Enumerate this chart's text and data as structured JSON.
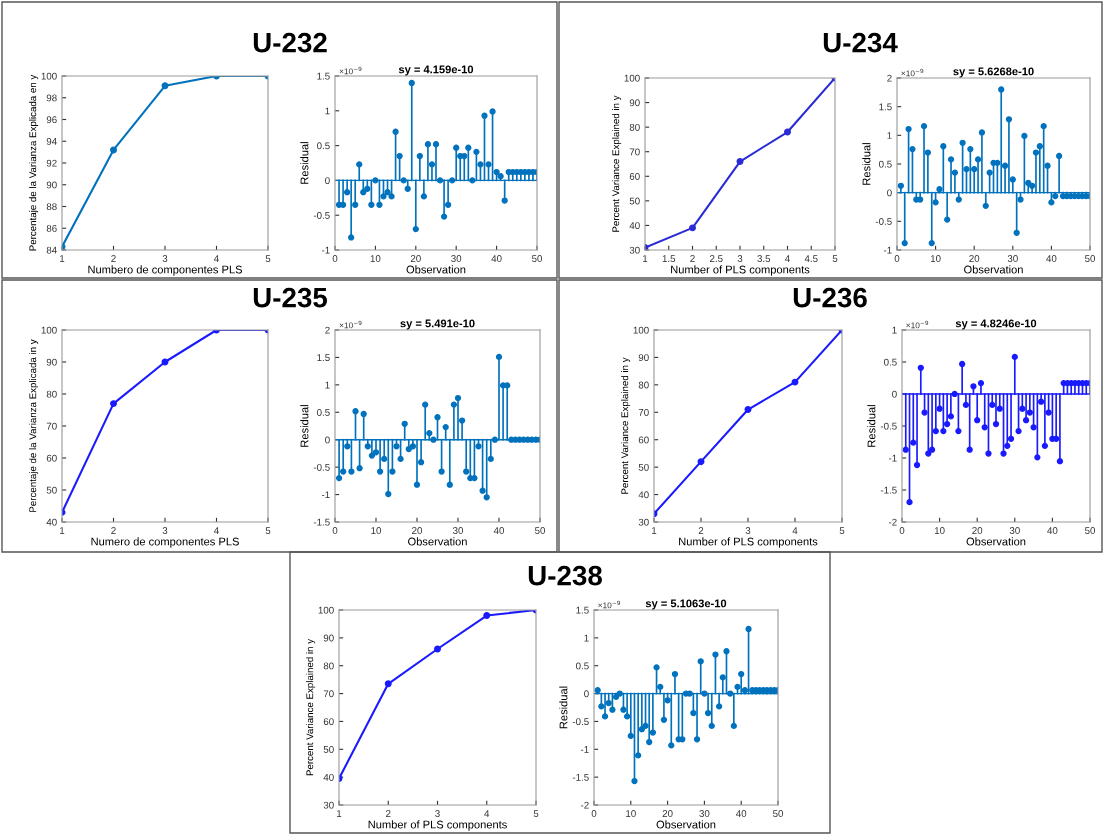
{
  "chart_data": [
    {
      "type": "line",
      "title": "U-232",
      "xlabel": "Numbero de componentes PLS",
      "ylabel": "Percentaje de la Varianza Explicada en y",
      "x": [
        1,
        2,
        3,
        4,
        5
      ],
      "series": [
        {
          "color": "#0072bd",
          "values": [
            84.3,
            93.2,
            99.1,
            100,
            100
          ]
        }
      ],
      "xlim": [
        1,
        5
      ],
      "xticks": [
        1,
        2,
        3,
        4,
        5
      ],
      "ylim": [
        84,
        100
      ],
      "yticks": [
        84,
        86,
        88,
        90,
        92,
        94,
        96,
        98,
        100
      ],
      "marker": "circle",
      "line_style": "solid",
      "grid": false,
      "legend": false
    },
    {
      "type": "lollipop",
      "title": "sy = 4.159e-10",
      "xlabel": "Observation",
      "ylabel": "Residual",
      "annotations": [
        "×10$^{−9}$"
      ],
      "x": [
        1,
        2,
        3,
        4,
        5,
        6,
        7,
        8,
        9,
        10,
        11,
        12,
        13,
        14,
        15,
        16,
        17,
        18,
        19,
        20,
        21,
        22,
        23,
        24,
        25,
        26,
        27,
        28,
        29,
        30,
        31,
        32,
        33,
        34,
        35,
        36,
        37,
        38,
        39,
        40,
        41,
        42,
        43,
        44,
        45,
        46,
        47,
        48,
        49,
        50
      ],
      "series": [
        {
          "color": "#0072bd",
          "values": [
            -0.35,
            -0.35,
            -0.17,
            -0.82,
            -0.35,
            0.23,
            -0.17,
            -0.12,
            -0.35,
            0.0,
            -0.35,
            -0.23,
            -0.17,
            -0.23,
            0.7,
            0.35,
            0.0,
            -0.12,
            1.4,
            -0.7,
            0.35,
            -0.23,
            0.52,
            0.23,
            0.52,
            0.0,
            -0.52,
            -0.35,
            0.0,
            0.47,
            0.35,
            0.35,
            0.47,
            0.0,
            0.41,
            0.23,
            0.93,
            0.23,
            0.99,
            0.12,
            0.06,
            -0.29,
            0.12,
            0.12,
            0.12,
            0.12,
            0.12,
            0.12,
            0.12,
            0.12
          ]
        }
      ],
      "xlim": [
        0,
        50
      ],
      "xticks": [
        0,
        10,
        20,
        30,
        40,
        50
      ],
      "ylim": [
        -1,
        1.5
      ],
      "yticks": [
        -1,
        -0.5,
        0,
        0.5,
        1,
        1.5
      ],
      "ref_lines": [
        {
          "axis": "y",
          "value": 0,
          "color": "#0072bd"
        }
      ],
      "marker": "circle",
      "grid": false,
      "legend": false
    },
    {
      "type": "line",
      "title": "U-234",
      "xlabel": "Number of PLS components",
      "ylabel": "Percent Variance Explained in y",
      "x": [
        1,
        2,
        3,
        4,
        5
      ],
      "series": [
        {
          "color": "#2b2bd6",
          "values": [
            31,
            39,
            66,
            78,
            100
          ]
        }
      ],
      "xlim": [
        1,
        5
      ],
      "xticks": [
        1,
        1.5,
        2,
        2.5,
        3,
        3.5,
        4,
        4.5,
        5
      ],
      "ylim": [
        30,
        100
      ],
      "yticks": [
        30,
        40,
        50,
        60,
        70,
        80,
        90,
        100
      ],
      "marker": "circle",
      "line_style": "solid",
      "grid": false,
      "legend": false
    },
    {
      "type": "lollipop",
      "title": "sy = 5.6268e-10",
      "xlabel": "Observation",
      "ylabel": "Residual",
      "annotations": [
        "×10$^{−9}$"
      ],
      "x": [
        1,
        2,
        3,
        4,
        5,
        6,
        7,
        8,
        9,
        10,
        11,
        12,
        13,
        14,
        15,
        16,
        17,
        18,
        19,
        20,
        21,
        22,
        23,
        24,
        25,
        26,
        27,
        28,
        29,
        30,
        31,
        32,
        33,
        34,
        35,
        36,
        37,
        38,
        39,
        40,
        41,
        42,
        43,
        44,
        45,
        46,
        47,
        48,
        49,
        50
      ],
      "series": [
        {
          "color": "#0072bd",
          "values": [
            0.12,
            -0.88,
            1.11,
            0.76,
            -0.12,
            -0.12,
            1.16,
            0.7,
            -0.88,
            -0.17,
            0.06,
            0.81,
            -0.47,
            0.58,
            0.35,
            -0.12,
            0.87,
            0.41,
            0.76,
            0.41,
            0.58,
            1.05,
            -0.23,
            0.35,
            0.52,
            0.52,
            1.8,
            0.47,
            1.28,
            0.23,
            -0.7,
            -0.12,
            0.99,
            0.17,
            0.12,
            0.7,
            0.81,
            1.16,
            0.47,
            -0.17,
            -0.06,
            0.64,
            -0.06,
            -0.06,
            -0.06,
            -0.06,
            -0.06,
            -0.06,
            -0.06,
            -0.06
          ]
        }
      ],
      "xlim": [
        0,
        50
      ],
      "xticks": [
        0,
        10,
        20,
        30,
        40,
        50
      ],
      "ylim": [
        -1,
        2
      ],
      "yticks": [
        -1,
        -0.5,
        0,
        0.5,
        1,
        1.5,
        2
      ],
      "ref_lines": [
        {
          "axis": "y",
          "value": 0,
          "color": "#0072bd"
        }
      ],
      "marker": "circle",
      "grid": false,
      "legend": false
    },
    {
      "type": "line",
      "title": "U-235",
      "xlabel": "Numero de componentes PLS",
      "ylabel": "Percentaje de la Varianza Explicada in y",
      "x": [
        1,
        2,
        3,
        4,
        5
      ],
      "series": [
        {
          "color": "#1a1aff",
          "values": [
            43,
            77,
            90,
            100,
            100
          ]
        }
      ],
      "xlim": [
        1,
        5
      ],
      "xticks": [
        1,
        2,
        3,
        4,
        5
      ],
      "ylim": [
        40,
        100
      ],
      "yticks": [
        40,
        50,
        60,
        70,
        80,
        90,
        100
      ],
      "marker": "circle",
      "line_style": "solid",
      "grid": false,
      "legend": false
    },
    {
      "type": "lollipop",
      "title": "sy = 5.491e-10",
      "xlabel": "Observation",
      "ylabel": "Residual",
      "annotations": [
        "×10$^{−9}$"
      ],
      "x": [
        1,
        2,
        3,
        4,
        5,
        6,
        7,
        8,
        9,
        10,
        11,
        12,
        13,
        14,
        15,
        16,
        17,
        18,
        19,
        20,
        21,
        22,
        23,
        24,
        25,
        26,
        27,
        28,
        29,
        30,
        31,
        32,
        33,
        34,
        35,
        36,
        37,
        38,
        39,
        40,
        41,
        42,
        43,
        44,
        45,
        46,
        47,
        48,
        49,
        50
      ],
      "series": [
        {
          "color": "#0072bd",
          "values": [
            -0.7,
            -0.58,
            -0.12,
            -0.58,
            0.52,
            -0.52,
            0.47,
            -0.12,
            -0.29,
            -0.23,
            -0.58,
            -0.35,
            -0.99,
            -0.58,
            -0.12,
            -0.35,
            0.29,
            -0.17,
            -0.12,
            -0.82,
            -0.41,
            0.64,
            0.12,
            0.0,
            0.41,
            -0.58,
            0.23,
            -0.82,
            0.64,
            0.76,
            0.35,
            -0.58,
            -0.7,
            -0.7,
            -0.12,
            -0.93,
            -1.05,
            -0.35,
            0.0,
            1.51,
            0.99,
            0.99,
            0.0,
            0.0,
            0.0,
            0.0,
            0.0,
            0.0,
            0.0,
            0.0
          ]
        }
      ],
      "xlim": [
        0,
        50
      ],
      "xticks": [
        0,
        10,
        20,
        30,
        40,
        50
      ],
      "ylim": [
        -1.5,
        2
      ],
      "yticks": [
        -1.5,
        -1,
        -0.5,
        0,
        0.5,
        1,
        1.5,
        2
      ],
      "ref_lines": [
        {
          "axis": "y",
          "value": 0,
          "color": "#0072bd"
        }
      ],
      "marker": "circle",
      "grid": false,
      "legend": false
    },
    {
      "type": "line",
      "title": "U-236",
      "xlabel": "Number of PLS components",
      "ylabel": "Percent Variance Explained in y",
      "x": [
        1,
        2,
        3,
        4,
        5
      ],
      "series": [
        {
          "color": "#1a1aff",
          "values": [
            33,
            52,
            71,
            81,
            100
          ]
        }
      ],
      "xlim": [
        1,
        5
      ],
      "xticks": [
        1,
        2,
        3,
        4,
        5
      ],
      "ylim": [
        30,
        100
      ],
      "yticks": [
        30,
        40,
        50,
        60,
        70,
        80,
        90,
        100
      ],
      "marker": "circle",
      "line_style": "solid",
      "grid": false,
      "legend": false
    },
    {
      "type": "lollipop",
      "title": "sy = 4.8246e-10",
      "xlabel": "Observation",
      "ylabel": "Residual",
      "annotations": [
        "×10$^{−9}$"
      ],
      "x": [
        1,
        2,
        3,
        4,
        5,
        6,
        7,
        8,
        9,
        10,
        11,
        12,
        13,
        14,
        15,
        16,
        17,
        18,
        19,
        20,
        21,
        22,
        23,
        24,
        25,
        26,
        27,
        28,
        29,
        30,
        31,
        32,
        33,
        34,
        35,
        36,
        37,
        38,
        39,
        40,
        41,
        42,
        43,
        44,
        45,
        46,
        47,
        48,
        49,
        50
      ],
      "series": [
        {
          "color": "#1a1aff",
          "values": [
            -0.87,
            -1.69,
            -0.76,
            -1.11,
            0.41,
            -0.29,
            -0.93,
            -0.87,
            -0.58,
            -0.23,
            -0.58,
            -0.47,
            -0.35,
            0.0,
            -0.58,
            0.47,
            -0.17,
            -0.87,
            0.12,
            -0.41,
            0.17,
            -0.52,
            -0.93,
            -0.17,
            -0.47,
            -0.23,
            -0.93,
            -0.81,
            -0.7,
            0.58,
            -0.58,
            -0.23,
            -0.41,
            -0.29,
            -0.52,
            -0.99,
            -0.12,
            -0.81,
            -0.29,
            -0.7,
            -0.7,
            -1.05,
            0.17,
            0.17,
            0.17,
            0.17,
            0.17,
            0.17,
            0.17,
            0.17
          ]
        }
      ],
      "xlim": [
        0,
        50
      ],
      "xticks": [
        0,
        10,
        20,
        30,
        40,
        50
      ],
      "ylim": [
        -2,
        1
      ],
      "yticks": [
        -2,
        -1.5,
        -1,
        -0.5,
        0,
        0.5,
        1
      ],
      "ref_lines": [
        {
          "axis": "y",
          "value": 0,
          "color": "#1a1aff"
        }
      ],
      "marker": "circle",
      "grid": false,
      "legend": false
    },
    {
      "type": "line",
      "title": "U-238",
      "xlabel": "Number of PLS components",
      "ylabel": "Percent Variance Explained in y",
      "x": [
        1,
        2,
        3,
        4,
        5
      ],
      "series": [
        {
          "color": "#1a1aff",
          "values": [
            39.5,
            73.5,
            86,
            98,
            100
          ]
        }
      ],
      "xlim": [
        1,
        5
      ],
      "xticks": [
        1,
        2,
        3,
        4,
        5
      ],
      "ylim": [
        30,
        100
      ],
      "yticks": [
        30,
        40,
        50,
        60,
        70,
        80,
        90,
        100
      ],
      "marker": "circle",
      "line_style": "solid",
      "grid": false,
      "legend": false
    },
    {
      "type": "lollipop",
      "title": "sy = 5.1063e-10",
      "xlabel": "Observation",
      "ylabel": "Residual",
      "annotations": [
        "×10$^{−9}$"
      ],
      "x": [
        1,
        2,
        3,
        4,
        5,
        6,
        7,
        8,
        9,
        10,
        11,
        12,
        13,
        14,
        15,
        16,
        17,
        18,
        19,
        20,
        21,
        22,
        23,
        24,
        25,
        26,
        27,
        28,
        29,
        30,
        31,
        32,
        33,
        34,
        35,
        36,
        37,
        38,
        39,
        40,
        41,
        42,
        43,
        44,
        45,
        46,
        47,
        48,
        49,
        50
      ],
      "series": [
        {
          "color": "#0072bd",
          "values": [
            0.06,
            -0.23,
            -0.41,
            -0.17,
            -0.29,
            -0.06,
            0.0,
            -0.29,
            -0.41,
            -0.76,
            -1.57,
            -1.11,
            -0.64,
            -0.58,
            -0.87,
            -0.7,
            0.47,
            0.12,
            -0.47,
            -0.12,
            -0.93,
            0.35,
            -0.82,
            -0.82,
            0.0,
            0.0,
            -0.35,
            -0.82,
            0.58,
            0.0,
            -0.35,
            -0.58,
            0.7,
            -0.23,
            0.29,
            0.76,
            0.0,
            -0.58,
            0.12,
            0.35,
            0.06,
            1.16,
            0.06,
            0.06,
            0.06,
            0.06,
            0.06,
            0.06,
            0.06,
            0.06
          ]
        }
      ],
      "xlim": [
        0,
        50
      ],
      "xticks": [
        0,
        10,
        20,
        30,
        40,
        50
      ],
      "ylim": [
        -2,
        1.5
      ],
      "yticks": [
        -2,
        -1.5,
        -1,
        -0.5,
        0,
        0.5,
        1,
        1.5
      ],
      "ref_lines": [
        {
          "axis": "y",
          "value": 0,
          "color": "#0072bd"
        }
      ],
      "marker": "circle",
      "grid": false,
      "legend": false
    }
  ]
}
